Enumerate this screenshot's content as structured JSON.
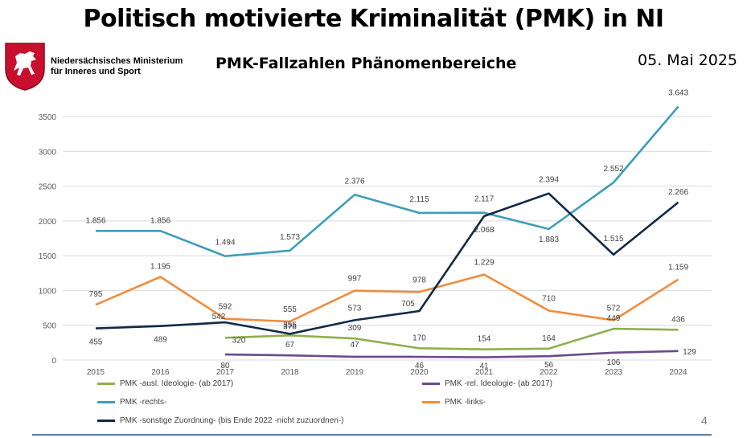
{
  "header": {
    "title": "Politisch motivierte Kriminalität (PMK) in NI",
    "ministry_line1": "Niedersächsisches Ministerium",
    "ministry_line2": "für Inneres und Sport",
    "subtitle": "PMK-Fallzahlen Phänomenbereiche",
    "date": "05. Mai 2025"
  },
  "page_number": "4",
  "chart_data": {
    "type": "line",
    "title": "",
    "xlabel": "",
    "ylabel": "",
    "categories": [
      "2015",
      "2016",
      "2017",
      "2018",
      "2019",
      "2020",
      "2021",
      "2022",
      "2023",
      "2024"
    ],
    "ylim": [
      0,
      3500
    ],
    "yticks": [
      0,
      500,
      1000,
      1500,
      2000,
      2500,
      3000,
      3500
    ],
    "grid": true,
    "legend_position": "bottom",
    "series": [
      {
        "name": "PMK -ausl. Ideologie- (ab 2017)",
        "color": "#8fb04a",
        "values": [
          null,
          null,
          320,
          355,
          309,
          170,
          154,
          164,
          449,
          436
        ],
        "labels": [
          "",
          "",
          "320",
          "355",
          "309",
          "170",
          "154",
          "164",
          "449",
          "436"
        ]
      },
      {
        "name": "PMK -rel. Ideologie- (ab 2017)",
        "color": "#6b4a8c",
        "values": [
          null,
          null,
          80,
          67,
          47,
          46,
          41,
          56,
          106,
          129
        ],
        "labels": [
          "",
          "",
          "80",
          "67",
          "47",
          "46",
          "41",
          "56",
          "106",
          "129"
        ]
      },
      {
        "name": "PMK -rechts-",
        "color": "#3d9fb8",
        "values": [
          1856,
          1856,
          1494,
          1573,
          2376,
          2115,
          2117,
          1883,
          2552,
          3643
        ],
        "labels": [
          "1.856",
          "1.856",
          "1.494",
          "1.573",
          "2.376",
          "2.115",
          "2.117",
          "1.883",
          "2.552",
          "3.643"
        ]
      },
      {
        "name": "PMK -links-",
        "color": "#f08c3c",
        "values": [
          795,
          1195,
          592,
          555,
          997,
          978,
          1229,
          710,
          572,
          1159
        ],
        "labels": [
          "795",
          "1.195",
          "592",
          "555",
          "997",
          "978",
          "1.229",
          "710",
          "572",
          "1.159"
        ]
      },
      {
        "name": "PMK -sonstige Zuordnung- (bis Ende 2022 -nicht zuzuordnen-)",
        "color": "#0f2a47",
        "values": [
          455,
          489,
          542,
          376,
          573,
          705,
          2068,
          2394,
          1515,
          2266
        ],
        "labels": [
          "455",
          "489",
          "542",
          "376",
          "573",
          "705",
          "2.068",
          "2.394",
          "1.515",
          "2.266"
        ]
      }
    ]
  }
}
